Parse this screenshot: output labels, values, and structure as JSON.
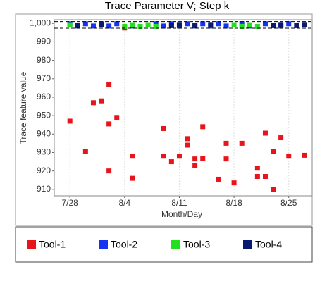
{
  "chart_data": {
    "type": "scatter",
    "title": "Trace Parameter V; Step k",
    "xlabel": "Month/Day",
    "ylabel": "Trace feature value",
    "xlim": [
      "7/26",
      "8/28"
    ],
    "xticks": [
      "7/28",
      "8/4",
      "8/11",
      "8/18",
      "8/25"
    ],
    "ylim": [
      906.5,
      1002
    ],
    "yticks": [
      {
        "value": 1000,
        "label": "1,000"
      },
      990,
      980,
      970,
      960,
      950,
      940,
      930,
      920,
      910
    ],
    "grid": true,
    "limit_lines": [
      1001,
      997.4
    ],
    "series": [
      {
        "name": "Tool-1",
        "color": "#e8141b",
        "x": [
          "7/28",
          "7/30",
          "7/31",
          "8/1",
          "8/2",
          "8/2",
          "8/2",
          "8/3",
          "8/4",
          "8/5",
          "8/5",
          "8/9",
          "8/9",
          "8/10",
          "8/11",
          "8/12",
          "8/12",
          "8/13",
          "8/13",
          "8/14",
          "8/14",
          "8/16",
          "8/17",
          "8/17",
          "8/18",
          "8/19",
          "8/21",
          "8/21",
          "8/22",
          "8/22",
          "8/23",
          "8/23",
          "8/24",
          "8/25",
          "8/27"
        ],
        "values": [
          947,
          930.5,
          957,
          958,
          967,
          920,
          945.5,
          949,
          997.5,
          916,
          928,
          928,
          943,
          925,
          928,
          937.5,
          934,
          923,
          926.5,
          926.7,
          944,
          915.5,
          926.5,
          935,
          913.5,
          935,
          917,
          921.5,
          940.5,
          917,
          910,
          930.5,
          938,
          928,
          928.5
        ]
      },
      {
        "name": "Tool-2",
        "color": "#1432f0",
        "x": [
          "7/28",
          "7/29",
          "7/30",
          "7/31",
          "8/1",
          "8/2",
          "8/3",
          "8/5",
          "8/8",
          "8/9",
          "8/10",
          "8/11",
          "8/12",
          "8/13",
          "8/14",
          "8/15",
          "8/16",
          "8/17",
          "8/19",
          "8/20",
          "8/22",
          "8/24",
          "8/25"
        ],
        "values": [
          999.8,
          998.6,
          999.8,
          998.6,
          999.8,
          998.6,
          999.8,
          998.6,
          999.8,
          998.6,
          999.8,
          998.6,
          999.8,
          998.6,
          999.8,
          998.6,
          999.8,
          998.6,
          999.8,
          998.6,
          999.8,
          998.6,
          999.8
        ]
      },
      {
        "name": "Tool-3",
        "color": "#22e01e",
        "x": [
          "7/28",
          "8/4",
          "8/5",
          "8/6",
          "8/7",
          "8/8",
          "8/18",
          "8/19",
          "8/20",
          "8/21"
        ],
        "values": [
          999.3,
          998.4,
          999.3,
          998.4,
          999.3,
          998.4,
          999.3,
          998.4,
          999.3,
          998.4
        ]
      },
      {
        "name": "Tool-4",
        "color": "#0a1a6e",
        "x": [
          "7/29",
          "8/1",
          "8/10",
          "8/11",
          "8/13",
          "8/15",
          "8/23",
          "8/24",
          "8/26",
          "8/27"
        ],
        "values": [
          998.8,
          999.4,
          998.8,
          999.4,
          998.8,
          999.4,
          998.8,
          999.4,
          998.8,
          999.4
        ]
      }
    ]
  }
}
